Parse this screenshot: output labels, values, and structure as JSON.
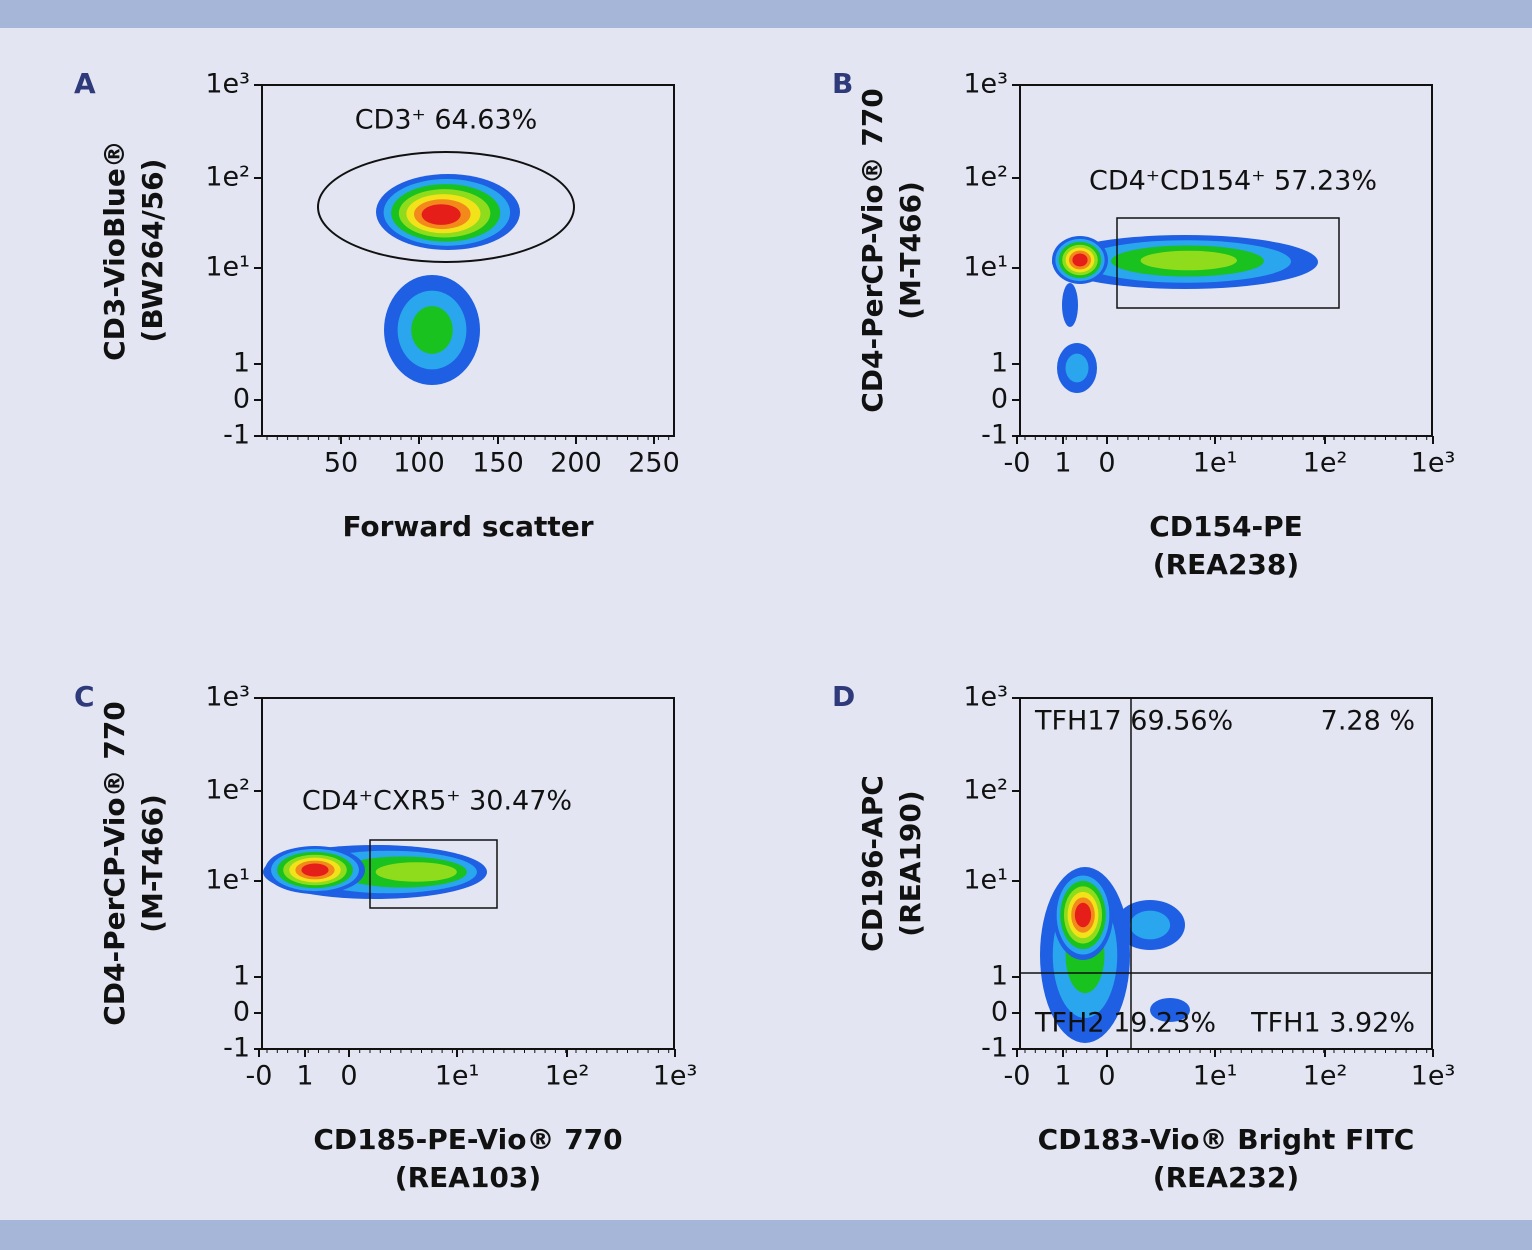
{
  "panels": [
    {
      "letter": "A",
      "y_label": [
        "CD3-VioBlue®",
        "(BW264/56)"
      ],
      "x_label": [
        "Forward scatter"
      ],
      "y_ticks": [
        "1e³",
        "1e²",
        "1e¹",
        "1",
        "0",
        "-1"
      ],
      "x_ticks": [
        "50",
        "100",
        "150",
        "200",
        "250"
      ],
      "gates": [
        "CD3⁺ 64.63%"
      ]
    },
    {
      "letter": "B",
      "y_label": [
        "CD4-PerCP-Vio® 770",
        "(M-T466)"
      ],
      "x_label": [
        "CD154-PE",
        "(REA238)"
      ],
      "y_ticks": [
        "1e³",
        "1e²",
        "1e¹",
        "1",
        "0",
        "-1"
      ],
      "x_ticks": [
        "-0",
        "1",
        "0",
        "1e¹",
        "1e²",
        "1e³"
      ],
      "gates": [
        "CD4⁺CD154⁺ 57.23%"
      ]
    },
    {
      "letter": "C",
      "y_label": [
        "CD4-PerCP-Vio® 770",
        "(M-T466)"
      ],
      "x_label": [
        "CD185-PE-Vio® 770",
        "(REA103)"
      ],
      "y_ticks": [
        "1e³",
        "1e²",
        "1e¹",
        "1",
        "0",
        "-1"
      ],
      "x_ticks": [
        "-0",
        "1",
        "0",
        "1e¹",
        "1e²",
        "1e³"
      ],
      "gates": [
        "CD4⁺CXR5⁺ 30.47%"
      ]
    },
    {
      "letter": "D",
      "y_label": [
        "CD196-APC",
        "(REA190)"
      ],
      "x_label": [
        "CD183-Vio® Bright FITC",
        "(REA232)"
      ],
      "y_ticks": [
        "1e³",
        "1e²",
        "1e¹",
        "1",
        "0",
        "-1"
      ],
      "x_ticks": [
        "-0",
        "1",
        "0",
        "1e¹",
        "1e²",
        "1e³"
      ],
      "gates": [
        "TFH17 69.56%",
        "7.28 %",
        "TFH2 19.23%",
        "TFH1 3.92%"
      ]
    }
  ]
}
